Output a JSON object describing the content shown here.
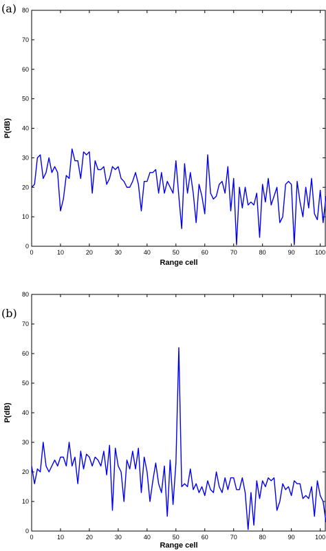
{
  "chart_data": [
    {
      "type": "line",
      "panel_label": "(a)",
      "title": "",
      "xlabel": "Range cell",
      "ylabel": "P(dB)",
      "xlim": [
        0,
        102
      ],
      "ylim": [
        0,
        80
      ],
      "xticks": [
        0,
        10,
        20,
        30,
        40,
        50,
        60,
        70,
        80,
        90,
        100
      ],
      "yticks": [
        0,
        10,
        20,
        30,
        40,
        50,
        60,
        70,
        80
      ],
      "grid": false,
      "color": "#0000ee",
      "series": [
        {
          "x": [
            0,
            1,
            2,
            3,
            4,
            5,
            6,
            7,
            8,
            9,
            10,
            11,
            12,
            13,
            14,
            15,
            16,
            17,
            18,
            19,
            20,
            21,
            22,
            23,
            24,
            25,
            26,
            27,
            28,
            29,
            30,
            31,
            32,
            33,
            34,
            35,
            36,
            37,
            38,
            39,
            40,
            41,
            42,
            43,
            44,
            45,
            46,
            47,
            48,
            49,
            50,
            51,
            52,
            53,
            54,
            55,
            56,
            57,
            58,
            59,
            60,
            61,
            62,
            63,
            64,
            65,
            66,
            67,
            68,
            69,
            70,
            71,
            72,
            73,
            74,
            75,
            76,
            77,
            78,
            79,
            80,
            81,
            82,
            83,
            84,
            85,
            86,
            87,
            88,
            89,
            90,
            91,
            92,
            93,
            94,
            95,
            96,
            97,
            98,
            99,
            100,
            101,
            102
          ],
          "values": [
            20,
            21,
            30,
            31,
            23,
            25,
            30,
            25,
            27,
            25,
            12,
            16,
            24,
            23,
            33,
            29,
            29,
            23,
            32,
            31,
            32,
            18,
            29,
            26,
            26,
            27,
            21,
            23,
            27,
            26,
            27,
            23,
            22,
            20,
            20,
            22,
            25,
            21,
            12,
            22,
            22,
            25,
            25,
            26,
            18,
            25,
            18,
            22,
            20,
            18,
            29,
            17,
            6,
            28,
            18,
            25,
            18,
            8,
            21,
            17,
            11,
            31,
            18,
            16,
            17,
            21,
            22,
            18,
            27,
            12,
            23,
            0.5,
            20,
            13,
            20,
            14,
            15,
            14,
            18,
            3,
            21,
            15,
            23,
            14,
            17,
            20,
            8,
            10,
            21,
            22,
            21,
            0.5,
            22,
            15,
            10,
            20,
            13,
            23,
            11,
            9,
            19,
            8,
            17
          ]
        }
      ]
    },
    {
      "type": "line",
      "panel_label": "(b)",
      "title": "",
      "xlabel": "Range cell",
      "ylabel": "P(dB)",
      "xlim": [
        0,
        102
      ],
      "ylim": [
        0,
        80
      ],
      "xticks": [
        0,
        10,
        20,
        30,
        40,
        50,
        60,
        70,
        80,
        90,
        100
      ],
      "yticks": [
        0,
        10,
        20,
        30,
        40,
        50,
        60,
        70,
        80
      ],
      "grid": false,
      "color": "#0000ee",
      "series": [
        {
          "x": [
            0,
            1,
            2,
            3,
            4,
            5,
            6,
            7,
            8,
            9,
            10,
            11,
            12,
            13,
            14,
            15,
            16,
            17,
            18,
            19,
            20,
            21,
            22,
            23,
            24,
            25,
            26,
            27,
            28,
            29,
            30,
            31,
            32,
            33,
            34,
            35,
            36,
            37,
            38,
            39,
            40,
            41,
            42,
            43,
            44,
            45,
            46,
            47,
            48,
            49,
            50,
            51,
            52,
            53,
            54,
            55,
            56,
            57,
            58,
            59,
            60,
            61,
            62,
            63,
            64,
            65,
            66,
            67,
            68,
            69,
            70,
            71,
            72,
            73,
            74,
            75,
            76,
            77,
            78,
            79,
            80,
            81,
            82,
            83,
            84,
            85,
            86,
            87,
            88,
            89,
            90,
            91,
            92,
            93,
            94,
            95,
            96,
            97,
            98,
            99,
            100,
            101,
            102
          ],
          "values": [
            22,
            16,
            21,
            20,
            30,
            22,
            20,
            22,
            24,
            22,
            25,
            25,
            22,
            30,
            22,
            25,
            16,
            27,
            21,
            26,
            25,
            22,
            25,
            24,
            22,
            27,
            19,
            29,
            7,
            28,
            22,
            20,
            10,
            24,
            21,
            27,
            21,
            28,
            13,
            25,
            20,
            10,
            17,
            23,
            16,
            13,
            22,
            5,
            24,
            9,
            23,
            62,
            15,
            16,
            15,
            21,
            14,
            16,
            13,
            15,
            12,
            17,
            14,
            13,
            20,
            15,
            13,
            18,
            14,
            18,
            18,
            14,
            14,
            18,
            13,
            0.5,
            13,
            2,
            17,
            11,
            17,
            15,
            18,
            17,
            18,
            7,
            10,
            16,
            14,
            15,
            12,
            17,
            16,
            16,
            11,
            12,
            11,
            15,
            5,
            17,
            12,
            10,
            3
          ]
        }
      ]
    }
  ]
}
